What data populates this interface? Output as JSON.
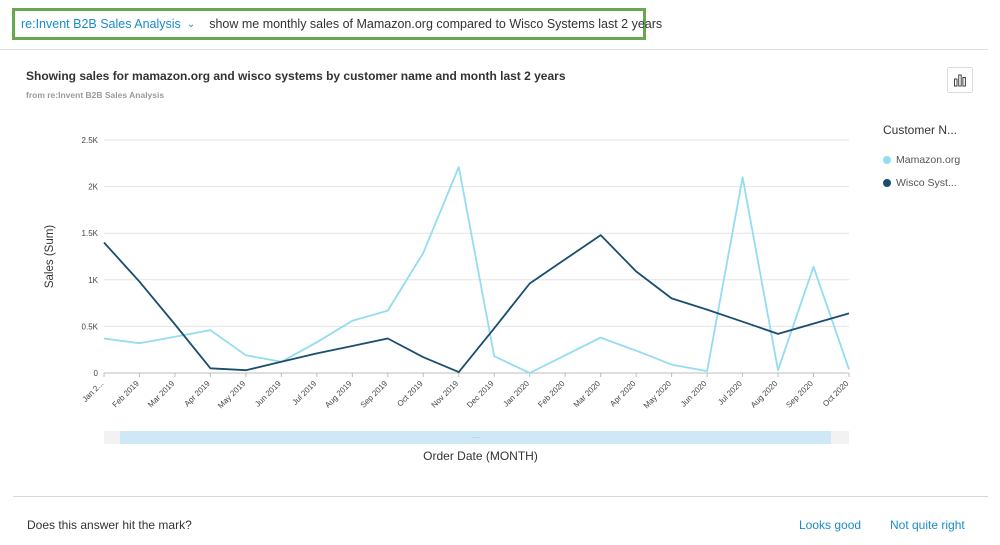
{
  "query_bar": {
    "topic": "re:Invent B2B Sales Analysis",
    "query": "show me monthly sales of Mamazon.org compared to Wisco Systems last 2 years"
  },
  "visual": {
    "title": "Showing sales for mamazon.org and wisco systems by customer name and month last 2 years",
    "subtitle": "from re:Invent B2B Sales Analysis",
    "type_button_icon": "bar-chart-icon"
  },
  "legend": {
    "title": "Customer N...",
    "items": [
      {
        "label": "Mamazon.org",
        "color": "#94dcf0"
      },
      {
        "label": "Wisco Syst...",
        "color": "#1a4e6e"
      }
    ]
  },
  "feedback": {
    "question": "Does this answer hit the mark?",
    "positive": "Looks good",
    "negative": "Not quite right"
  },
  "chart_data": {
    "type": "line",
    "xlabel": "Order Date (MONTH)",
    "ylabel": "Sales (Sum)",
    "ylim": [
      0,
      2500
    ],
    "yticks": [
      0,
      500,
      1000,
      1500,
      2000,
      2500
    ],
    "ytick_labels": [
      "0",
      "0.5K",
      "1K",
      "1.5K",
      "2K",
      "2.5K"
    ],
    "categories": [
      "Jan 2...",
      "Feb 2019",
      "Mar 2019",
      "Apr 2019",
      "May 2019",
      "Jun 2019",
      "Jul 2019",
      "Aug 2019",
      "Sep 2019",
      "Oct 2019",
      "Nov 2019",
      "Dec 2019",
      "Jan 2020",
      "Feb 2020",
      "Mar 2020",
      "Apr 2020",
      "May 2020",
      "Jun 2020",
      "Jul 2020",
      "Aug 2020",
      "Sep 2020",
      "Oct 2020"
    ],
    "grid": true,
    "legend_position": "right",
    "series": [
      {
        "name": "Mamazon.org",
        "color": "#94dcf0",
        "values": [
          370,
          320,
          390,
          460,
          190,
          120,
          330,
          560,
          670,
          1290,
          2210,
          180,
          0,
          190,
          380,
          240,
          90,
          20,
          2100,
          30,
          1140,
          40
        ]
      },
      {
        "name": "Wisco Syst...",
        "color": "#1a4e6e",
        "values": [
          1400,
          980,
          520,
          50,
          30,
          120,
          210,
          290,
          370,
          170,
          10,
          480,
          960,
          1220,
          1480,
          1090,
          800,
          680,
          550,
          420,
          530,
          640
        ]
      }
    ]
  }
}
